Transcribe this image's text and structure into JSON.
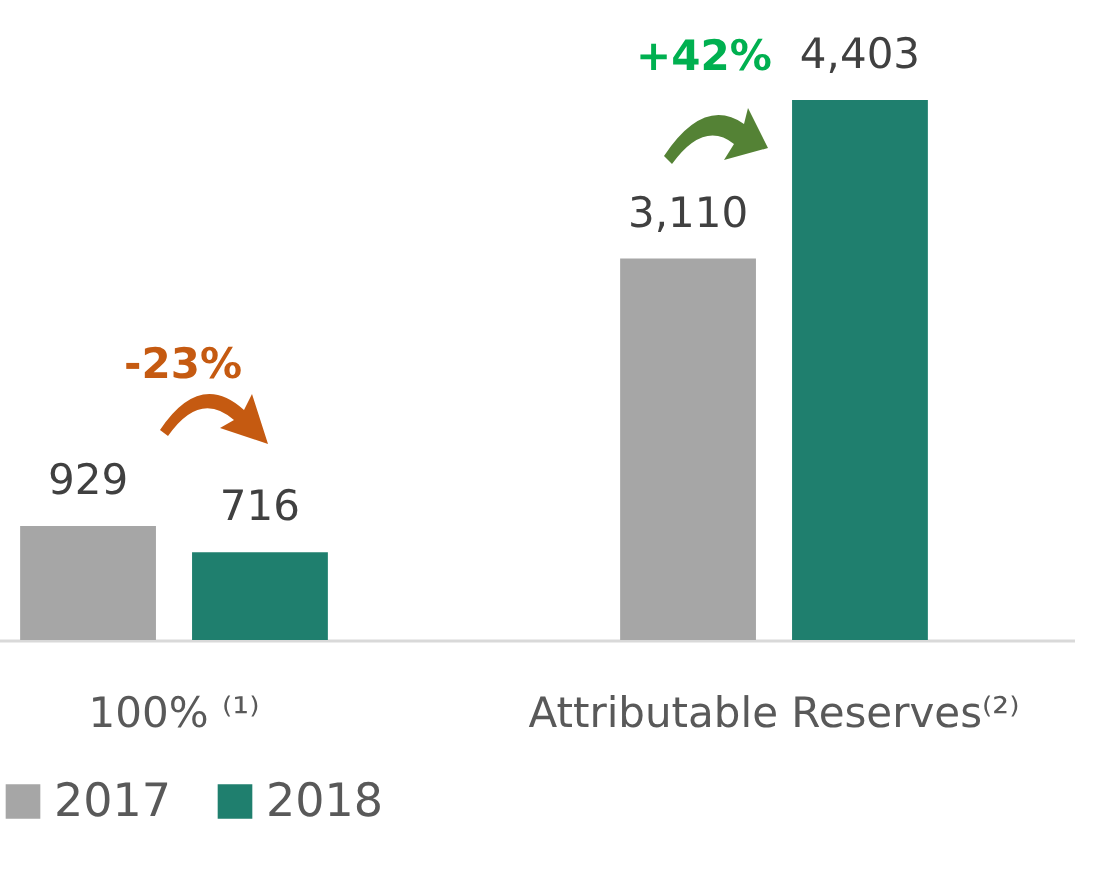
{
  "chart_data": {
    "type": "bar",
    "categories": [
      "100% ⁽¹⁾",
      "Attributable Reserves⁽²⁾"
    ],
    "series": [
      {
        "name": "2017",
        "color": "#a6a6a6",
        "values": [
          929,
          3110
        ],
        "value_labels": [
          "929",
          "3,110"
        ]
      },
      {
        "name": "2018",
        "color": "#1f7f6e",
        "values": [
          716,
          4403
        ],
        "value_labels": [
          "716",
          "4,403"
        ]
      }
    ],
    "legend": "bottom",
    "annotations": [
      "-23%",
      "+42%"
    ]
  }
}
